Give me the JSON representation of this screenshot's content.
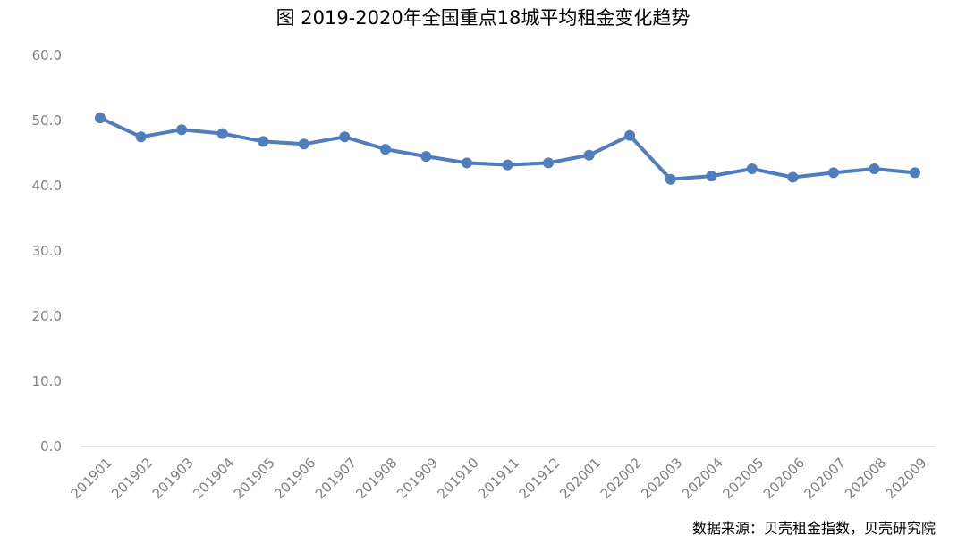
{
  "chart_data": {
    "type": "line",
    "title": "图 2019-2020年全国重点18城平均租金变化趋势",
    "source": "数据来源：贝壳租金指数，贝壳研究院",
    "categories": [
      "201901",
      "201902",
      "201903",
      "201904",
      "201905",
      "201906",
      "201907",
      "201908",
      "201909",
      "201910",
      "201911",
      "201912",
      "202001",
      "202002",
      "202003",
      "202004",
      "202005",
      "202006",
      "202007",
      "202008",
      "202009"
    ],
    "series": [
      {
        "values": [
          50.4,
          47.5,
          48.6,
          48.0,
          46.8,
          46.4,
          47.5,
          45.6,
          44.5,
          43.5,
          43.2,
          43.5,
          44.7,
          47.7,
          41.0,
          41.5,
          42.6,
          41.3,
          42.0,
          42.6,
          42.0
        ]
      }
    ],
    "ylim": [
      0,
      60
    ],
    "yticks": [
      "0.0",
      "10.0",
      "20.0",
      "30.0",
      "40.0",
      "50.0",
      "60.0"
    ],
    "xlabel": "",
    "ylabel": "",
    "grid": false,
    "legend": "none",
    "colors": {
      "line": "#4f7dbd",
      "axis": "#d9d9d9",
      "tick_text": "#7f7f7f"
    }
  }
}
